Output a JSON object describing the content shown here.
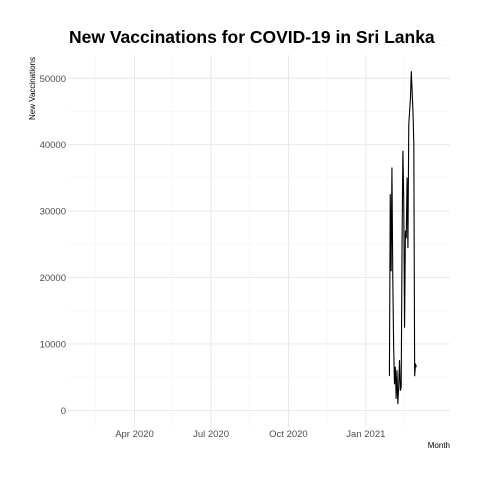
{
  "chart_data": {
    "type": "line",
    "title": "New Vaccinations for COVID-19 in Sri Lanka",
    "xlabel": "Month",
    "ylabel": "New Vaccinations",
    "x_tick_labels": [
      {
        "date": "2020-04-01",
        "label": "Apr 2020"
      },
      {
        "date": "2020-07-01",
        "label": "Jul 2020"
      },
      {
        "date": "2020-10-01",
        "label": "Oct 2020"
      },
      {
        "date": "2021-01-01",
        "label": "Jan 2021"
      }
    ],
    "y_ticks": [
      0,
      10000,
      20000,
      30000,
      40000,
      50000
    ],
    "xlim": [
      "2020-01-13",
      "2021-04-11"
    ],
    "ylim": [
      -2500,
      53500
    ],
    "grid": true,
    "series": [
      {
        "color": "#000000",
        "x": [
          "2021-01-29",
          "2021-01-30",
          "2021-01-31",
          "2021-02-01",
          "2021-02-02",
          "2021-02-03",
          "2021-02-04",
          "2021-02-05",
          "2021-02-06",
          "2021-02-07",
          "2021-02-08",
          "2021-02-09",
          "2021-02-10",
          "2021-02-11",
          "2021-02-12",
          "2021-02-13",
          "2021-02-14",
          "2021-02-15",
          "2021-02-16",
          "2021-02-17",
          "2021-02-18",
          "2021-02-19",
          "2021-02-20",
          "2021-02-21",
          "2021-02-22",
          "2021-02-23",
          "2021-02-24",
          "2021-02-25",
          "2021-02-26",
          "2021-02-27",
          "2021-02-28",
          "2021-03-01",
          "2021-03-02",
          "2021-03-03",
          "2021-03-04",
          "2021-03-05",
          "2021-03-06",
          "2021-03-07",
          "2021-03-08"
        ],
        "y": [
          5200,
          32500,
          21000,
          36500,
          20000,
          9800,
          4000,
          6500,
          1800,
          6000,
          1000,
          3500,
          7500,
          3000,
          3500,
          25000,
          39000,
          32000,
          12500,
          27000,
          26000,
          35000,
          24500,
          43000,
          45000,
          47000,
          51000,
          48000,
          45000,
          40000,
          5200,
          7000,
          6500,
          null,
          null,
          null,
          null,
          null,
          null
        ]
      }
    ]
  }
}
